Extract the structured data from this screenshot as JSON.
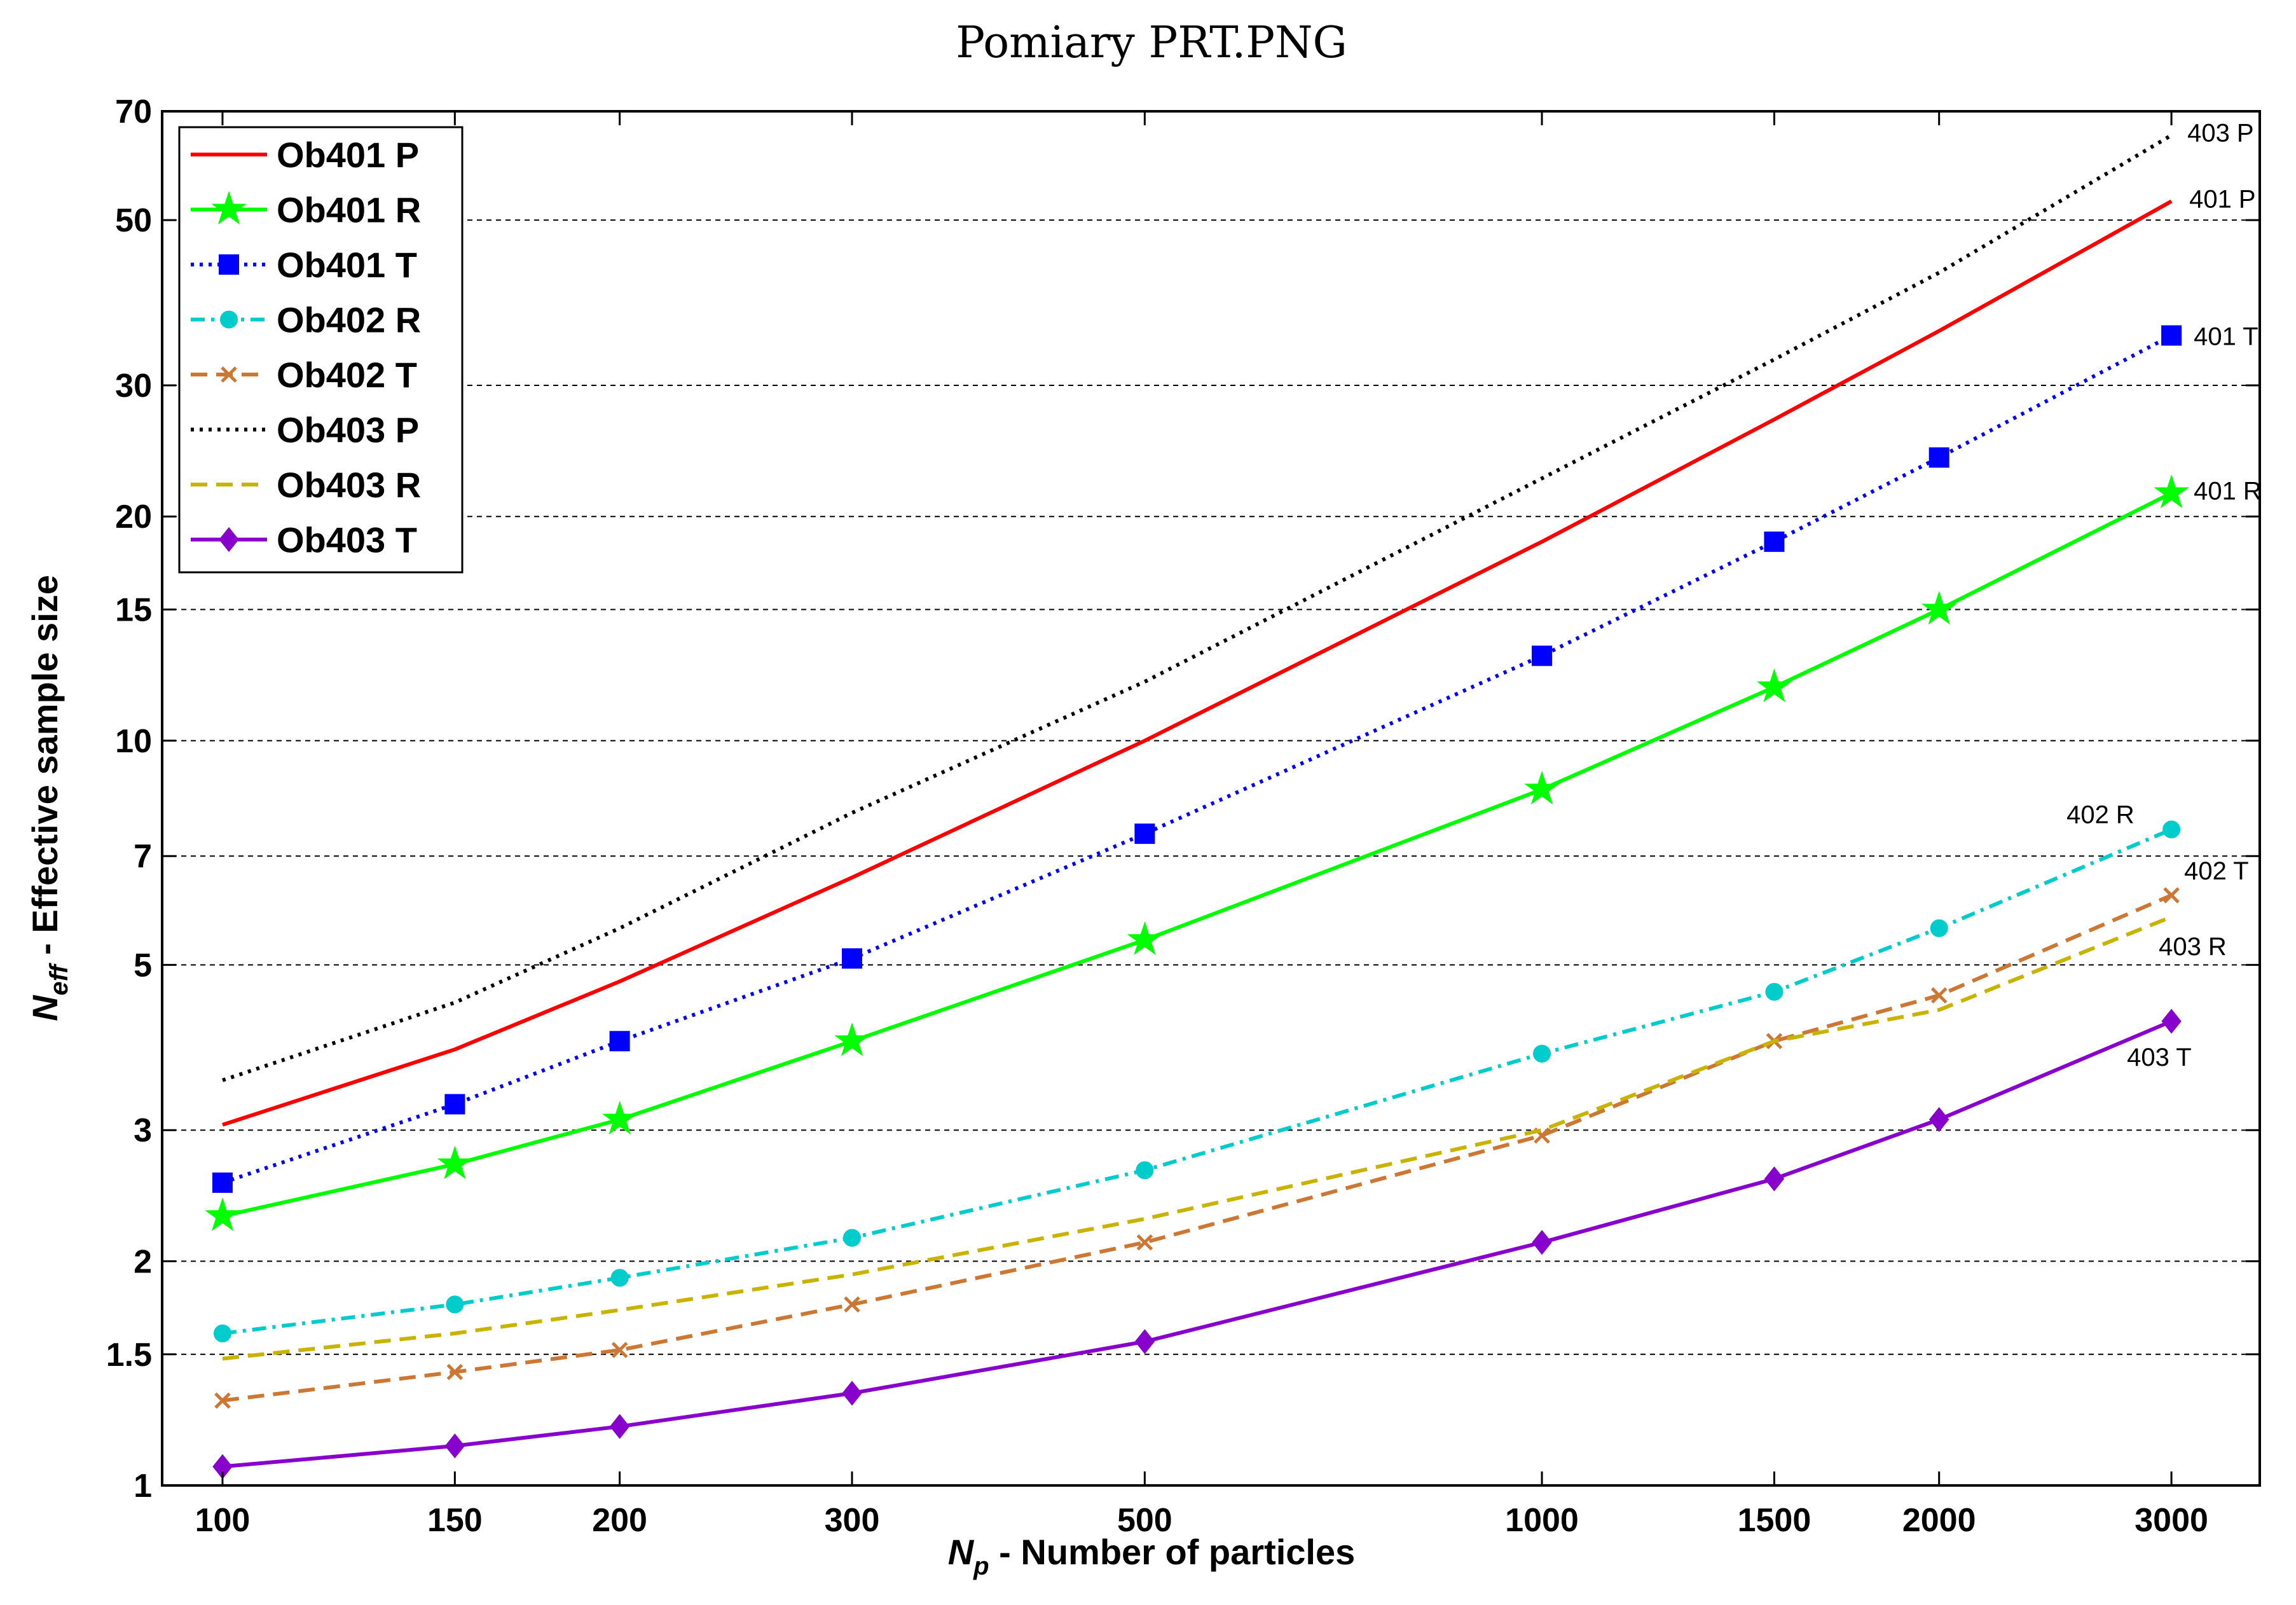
{
  "chart_data": {
    "type": "line",
    "title": "Pomiary PRT.PNG",
    "xscale": "log",
    "yscale": "log",
    "xlabel": {
      "main": "N",
      "sub": "p",
      "rest": " - Number of particles"
    },
    "ylabel": {
      "main": "N",
      "sub": "eff",
      "rest": " - Effective sample size"
    },
    "xlim": [
      90,
      3500
    ],
    "ylim": [
      1,
      70
    ],
    "x": [
      100,
      150,
      200,
      300,
      500,
      1000,
      1500,
      2000,
      3000
    ],
    "xticks": [
      100,
      150,
      200,
      300,
      500,
      1000,
      1500,
      2000,
      3000
    ],
    "xtick_labels": [
      "100",
      "150",
      "200",
      "300",
      "500",
      "1000",
      "1500",
      "2000",
      "3000"
    ],
    "yticks": [
      1,
      1.5,
      2,
      3,
      5,
      7,
      10,
      15,
      20,
      30,
      50,
      70
    ],
    "ytick_labels": [
      "1",
      "1.5",
      "2",
      "3",
      "5",
      "7",
      "10",
      "15",
      "20",
      "30",
      "50",
      "70"
    ],
    "grid": "horizontal-dashed",
    "legend_position": "top-left",
    "series": [
      {
        "name": "Ob401 P",
        "color": "#ff0000",
        "dash": "solid",
        "marker": "none",
        "values": [
          3.05,
          3.85,
          4.75,
          6.55,
          10.0,
          18.5,
          27.0,
          35.5,
          53.0
        ],
        "annotation": "401 P"
      },
      {
        "name": "Ob401 R",
        "color": "#00ff00",
        "dash": "solid",
        "marker": "star",
        "values": [
          2.3,
          2.7,
          3.1,
          3.95,
          5.4,
          8.6,
          11.8,
          15.0,
          21.5
        ],
        "annotation": "401 R"
      },
      {
        "name": "Ob401 T",
        "color": "#0000ff",
        "dash": "dotted",
        "marker": "square",
        "values": [
          2.55,
          3.25,
          3.95,
          5.1,
          7.5,
          13.0,
          18.5,
          24.0,
          35.0
        ],
        "annotation": "401 T"
      },
      {
        "name": "Ob402 R",
        "color": "#00cccc",
        "dash": "dashdot",
        "marker": "circle",
        "values": [
          1.6,
          1.75,
          1.9,
          2.15,
          2.65,
          3.8,
          4.6,
          5.6,
          7.6
        ],
        "annotation": "402 R"
      },
      {
        "name": "Ob402 T",
        "color": "#cc7733",
        "dash": "dashed",
        "marker": "x",
        "values": [
          1.3,
          1.42,
          1.52,
          1.75,
          2.12,
          2.95,
          3.95,
          4.55,
          6.2
        ],
        "annotation": "402 T"
      },
      {
        "name": "Ob403 P",
        "color": "#000000",
        "dash": "dotted",
        "marker": "none",
        "values": [
          3.5,
          4.45,
          5.6,
          8.0,
          12.0,
          22.5,
          32.5,
          42.5,
          65.0
        ],
        "annotation": "403 P"
      },
      {
        "name": "Ob403 R",
        "color": "#c8b400",
        "dash": "dashed",
        "marker": "none",
        "values": [
          1.48,
          1.6,
          1.72,
          1.92,
          2.28,
          3.0,
          3.95,
          4.35,
          5.8
        ],
        "annotation": "403 R"
      },
      {
        "name": "Ob403 T",
        "color": "#8800cc",
        "dash": "solid",
        "marker": "diamond",
        "values": [
          1.06,
          1.13,
          1.2,
          1.33,
          1.56,
          2.12,
          2.58,
          3.1,
          4.2
        ],
        "annotation": "403 T"
      }
    ]
  }
}
